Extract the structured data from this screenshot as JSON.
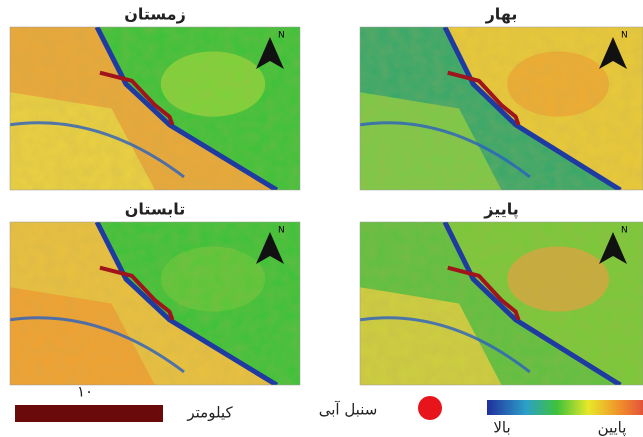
{
  "panels": [
    {
      "title": "زمستان",
      "north": "N"
    },
    {
      "title": "بهار",
      "north": "N"
    },
    {
      "title": "تابستان",
      "north": "N"
    },
    {
      "title": "پاییز",
      "north": "N"
    }
  ],
  "legend": {
    "scale_value": "۱۰",
    "scale_unit": "کیلومتر",
    "marker_label": "سنبل آبی",
    "high": "بالا",
    "low": "پایین"
  }
}
